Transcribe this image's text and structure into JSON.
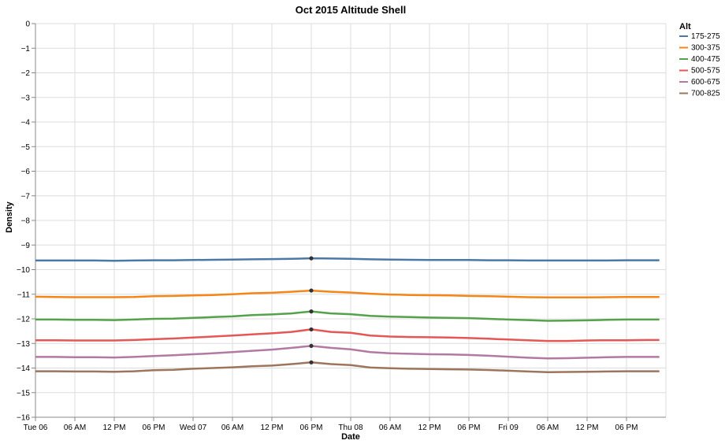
{
  "chart_data": {
    "type": "line",
    "title": "Oct 2015 Altitude Shell",
    "xlabel": "Date",
    "ylabel": "Density",
    "ylim": [
      -16,
      0
    ],
    "x_tick_labels": [
      "Tue 06",
      "06 AM",
      "12 PM",
      "06 PM",
      "Wed 07",
      "06 AM",
      "12 PM",
      "06 PM",
      "Thu 08",
      "06 AM",
      "12 PM",
      "06 PM",
      "Fri 09",
      "06 AM",
      "12 PM",
      "06 PM"
    ],
    "y_ticks": [
      0,
      -1,
      -2,
      -3,
      -4,
      -5,
      -6,
      -7,
      -8,
      -9,
      -10,
      -11,
      -12,
      -13,
      -14,
      -15,
      -16
    ],
    "grid": true,
    "legend": {
      "title": "Alt",
      "position": "right"
    },
    "x": [
      0,
      3,
      6,
      9,
      12,
      15,
      18,
      21,
      24,
      27,
      30,
      33,
      36,
      39,
      42,
      45,
      48,
      51,
      54,
      57,
      60,
      63,
      66,
      69,
      72,
      75,
      78,
      81,
      84,
      87,
      90,
      93,
      95
    ],
    "x_unit": "hours from Tue 06 00:00",
    "highlight_x": 42,
    "series": [
      {
        "name": "175-275",
        "color": "#4c78a8",
        "values": [
          -9.63,
          -9.63,
          -9.63,
          -9.63,
          -9.64,
          -9.63,
          -9.62,
          -9.62,
          -9.61,
          -9.6,
          -9.59,
          -9.58,
          -9.57,
          -9.56,
          -9.54,
          -9.55,
          -9.56,
          -9.58,
          -9.59,
          -9.6,
          -9.61,
          -9.61,
          -9.61,
          -9.62,
          -9.62,
          -9.63,
          -9.63,
          -9.63,
          -9.63,
          -9.63,
          -9.62,
          -9.62,
          -9.62
        ]
      },
      {
        "name": "300-375",
        "color": "#f58518",
        "values": [
          -11.1,
          -11.11,
          -11.12,
          -11.12,
          -11.12,
          -11.11,
          -11.08,
          -11.07,
          -11.05,
          -11.03,
          -11.0,
          -10.96,
          -10.94,
          -10.9,
          -10.85,
          -10.9,
          -10.93,
          -10.98,
          -11.01,
          -11.03,
          -11.04,
          -11.05,
          -11.07,
          -11.08,
          -11.1,
          -11.12,
          -11.13,
          -11.13,
          -11.13,
          -11.12,
          -11.11,
          -11.11,
          -11.11
        ]
      },
      {
        "name": "400-475",
        "color": "#54a24b",
        "values": [
          -12.03,
          -12.03,
          -12.04,
          -12.04,
          -12.05,
          -12.03,
          -12.0,
          -11.99,
          -11.96,
          -11.93,
          -11.9,
          -11.85,
          -11.82,
          -11.78,
          -11.7,
          -11.78,
          -11.81,
          -11.88,
          -11.91,
          -11.93,
          -11.95,
          -11.96,
          -11.97,
          -12.0,
          -12.03,
          -12.05,
          -12.08,
          -12.07,
          -12.06,
          -12.04,
          -12.03,
          -12.03,
          -12.03
        ]
      },
      {
        "name": "500-575",
        "color": "#e45756",
        "values": [
          -12.87,
          -12.87,
          -12.88,
          -12.88,
          -12.88,
          -12.86,
          -12.83,
          -12.8,
          -12.76,
          -12.72,
          -12.68,
          -12.63,
          -12.59,
          -12.53,
          -12.43,
          -12.53,
          -12.57,
          -12.68,
          -12.72,
          -12.74,
          -12.75,
          -12.76,
          -12.78,
          -12.81,
          -12.84,
          -12.87,
          -12.9,
          -12.9,
          -12.88,
          -12.87,
          -12.87,
          -12.86,
          -12.86
        ]
      },
      {
        "name": "600-675",
        "color": "#b279a2",
        "values": [
          -13.55,
          -13.55,
          -13.56,
          -13.56,
          -13.57,
          -13.55,
          -13.51,
          -13.48,
          -13.44,
          -13.4,
          -13.35,
          -13.3,
          -13.25,
          -13.18,
          -13.1,
          -13.18,
          -13.24,
          -13.35,
          -13.4,
          -13.42,
          -13.44,
          -13.45,
          -13.47,
          -13.5,
          -13.54,
          -13.58,
          -13.61,
          -13.6,
          -13.58,
          -13.56,
          -13.55,
          -13.55,
          -13.55
        ]
      },
      {
        "name": "700-825",
        "color": "#9d755d",
        "values": [
          -14.13,
          -14.13,
          -14.14,
          -14.14,
          -14.15,
          -14.13,
          -14.09,
          -14.07,
          -14.03,
          -14.0,
          -13.97,
          -13.93,
          -13.9,
          -13.84,
          -13.77,
          -13.84,
          -13.88,
          -13.98,
          -14.01,
          -14.03,
          -14.04,
          -14.05,
          -14.06,
          -14.08,
          -14.11,
          -14.14,
          -14.17,
          -14.16,
          -14.15,
          -14.14,
          -14.13,
          -14.13,
          -14.13
        ]
      }
    ]
  }
}
